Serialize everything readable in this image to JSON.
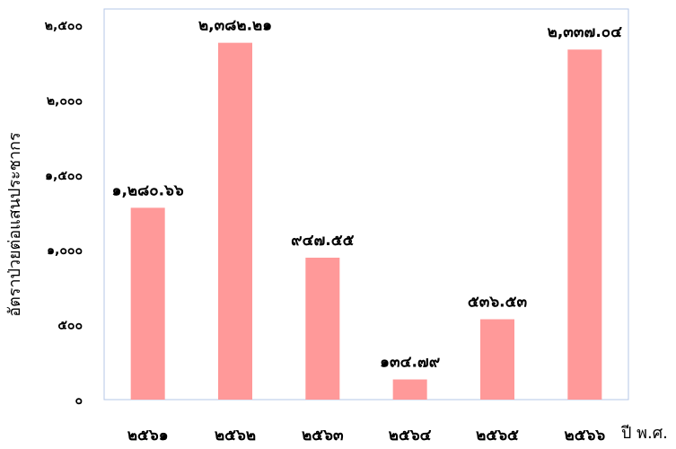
{
  "chart_data": {
    "type": "bar",
    "title": "",
    "xlabel": "ปี พ.ศ.",
    "ylabel": "อัตราป่วยต่อแสนประชากร",
    "categories": [
      "๒๕๖๑",
      "๒๕๖๒",
      "๒๕๖๓",
      "๒๕๖๔",
      "๒๕๖๕",
      "๒๕๖๖"
    ],
    "values": [
      1280.66,
      2382.21,
      947.55,
      134.79,
      536.53,
      2337.04
    ],
    "data_labels": [
      "๑,๒๘๐.๖๖",
      "๒,๓๘๒.๒๑",
      "๙๔๗.๕๕",
      "๑๓๔.๗๙",
      "๕๓๖.๕๓",
      "๒,๓๓๗.๐๔"
    ],
    "yticks": [
      0,
      500,
      1000,
      1500,
      2000,
      2500
    ],
    "ytick_labels": [
      "๐",
      "๕๐๐",
      "๑,๐๐๐",
      "๑,๕๐๐",
      "๒,๐๐๐",
      "๒,๕๐๐"
    ],
    "ylim": [
      0,
      2500
    ],
    "grid": false,
    "legend": "none",
    "bar_color": "#ff9999",
    "frame_color": "#b4c7e7"
  }
}
